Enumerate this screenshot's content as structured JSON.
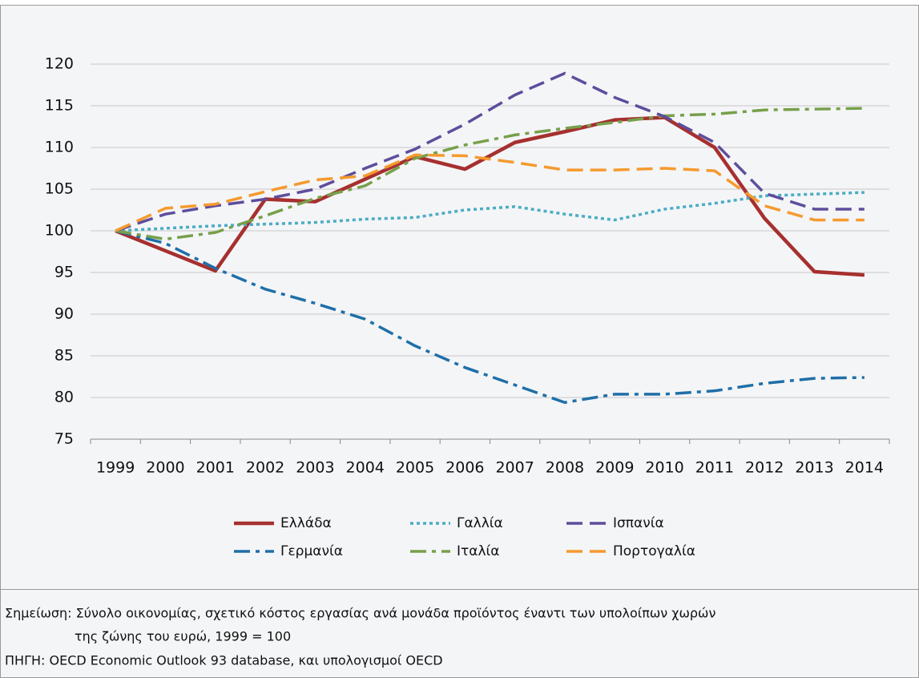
{
  "chart_data": {
    "type": "line",
    "categories": [
      "1999",
      "2000",
      "2001",
      "2002",
      "2003",
      "2004",
      "2005",
      "2006",
      "2007",
      "2008",
      "2009",
      "2010",
      "2011",
      "2012",
      "2013",
      "2014"
    ],
    "series": [
      {
        "name": "Ελλάδα",
        "color": "#a6302f",
        "style": "solid",
        "values": [
          100,
          97.6,
          95.2,
          103.8,
          103.5,
          106.2,
          108.9,
          107.4,
          110.6,
          111.9,
          113.3,
          113.6,
          110.0,
          101.5,
          95.1,
          94.7
        ]
      },
      {
        "name": "Γερμανία",
        "color": "#1f6fa8",
        "style": "dashdot",
        "values": [
          100,
          98.5,
          95.5,
          93.0,
          91.3,
          89.4,
          86.2,
          83.6,
          81.5,
          79.4,
          80.4,
          80.4,
          80.8,
          81.7,
          82.3,
          82.4
        ]
      },
      {
        "name": "Γαλλία",
        "color": "#4bacc6",
        "style": "dot",
        "values": [
          100,
          100.3,
          100.6,
          100.8,
          101.0,
          101.4,
          101.6,
          102.5,
          102.9,
          102.0,
          101.3,
          102.6,
          103.3,
          104.2,
          104.4,
          104.6
        ]
      },
      {
        "name": "Ιταλία",
        "color": "#77a04a",
        "style": "dashdot",
        "values": [
          100,
          99.0,
          99.8,
          101.8,
          103.9,
          105.4,
          108.7,
          110.3,
          111.5,
          112.3,
          113.0,
          113.8,
          114.0,
          114.5,
          114.6,
          114.7
        ]
      },
      {
        "name": "Ισπανία",
        "color": "#5e4d9c",
        "style": "dash",
        "values": [
          100,
          102.0,
          103.0,
          103.8,
          105.0,
          107.5,
          109.8,
          112.8,
          116.3,
          118.9,
          116.0,
          113.7,
          110.6,
          104.5,
          102.6,
          102.6
        ]
      },
      {
        "name": "Πορτογαλία",
        "color": "#f59a2e",
        "style": "dash",
        "values": [
          100,
          102.7,
          103.2,
          104.7,
          106.1,
          106.6,
          109.1,
          109.0,
          108.2,
          107.3,
          107.3,
          107.5,
          107.2,
          103.0,
          101.3,
          101.3
        ]
      }
    ],
    "ylim": [
      75,
      120
    ],
    "yticks": [
      75,
      80,
      85,
      90,
      95,
      100,
      105,
      110,
      115,
      120
    ],
    "grid": true
  },
  "notes": [
    "Σημείωση: Σύνολο οικονομίας, σχετικό κόστος εργασίας ανά μονάδα προϊόντος έναντι των υπολοίπων χωρών",
    "της ζώνης του ευρώ, 1999 = 100",
    "ΠΗΓΗ: OECD Economic Outlook 93 database, και υπολογισμοί OECD"
  ]
}
